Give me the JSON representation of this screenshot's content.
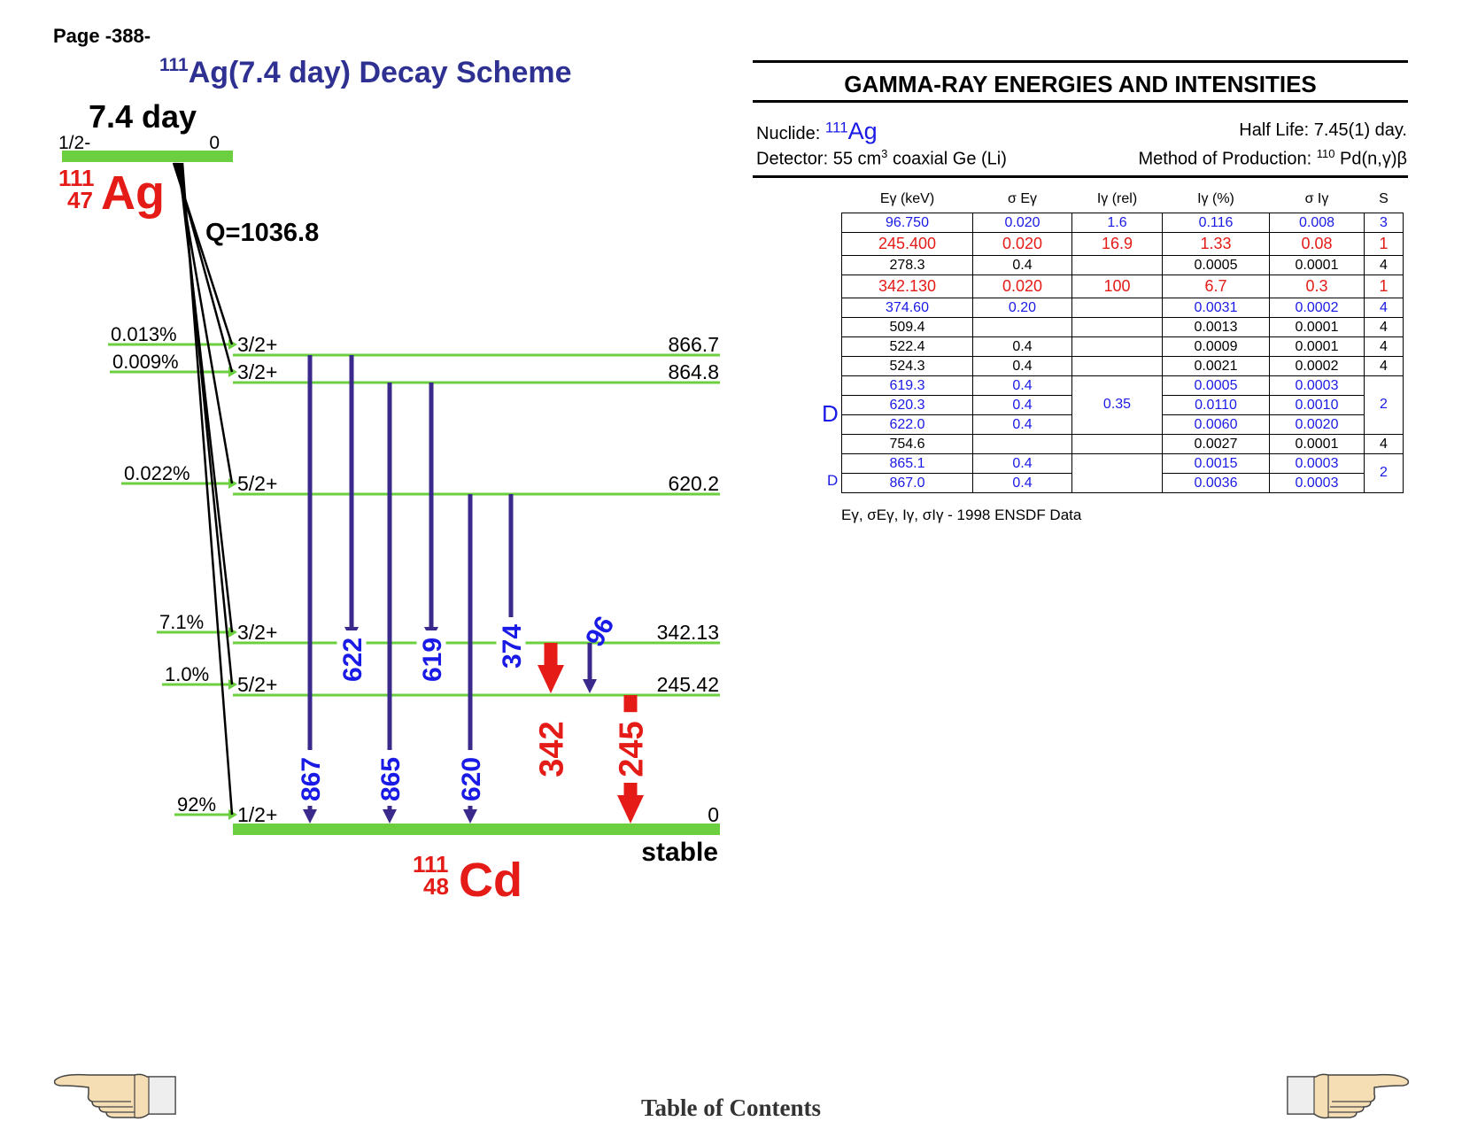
{
  "page_label": "Page -388-",
  "scheme": {
    "title_mass": "111",
    "title_text": "Ag(7.4 day) Decay Scheme",
    "parent": {
      "halflife": "7.4 day",
      "spin": "1/2-",
      "energy": "0",
      "mass": "111",
      "z": "47",
      "symbol": "Ag"
    },
    "q_value": "Q=1036.8",
    "levels": [
      {
        "spin": "3/2+",
        "energy": "866.7",
        "feed": "0.013%"
      },
      {
        "spin": "3/2+",
        "energy": "864.8",
        "feed": "0.009%"
      },
      {
        "spin": "5/2+",
        "energy": "620.2",
        "feed": "0.022%"
      },
      {
        "spin": "3/2+",
        "energy": "342.13",
        "feed": "7.1%"
      },
      {
        "spin": "5/2+",
        "energy": "245.42",
        "feed": "1.0%"
      },
      {
        "spin": "1/2+",
        "energy": "0",
        "feed": "92%"
      }
    ],
    "gammas": [
      {
        "label": "867",
        "color": "blue"
      },
      {
        "label": "622",
        "color": "blue"
      },
      {
        "label": "865",
        "color": "blue"
      },
      {
        "label": "619",
        "color": "blue"
      },
      {
        "label": "620",
        "color": "blue"
      },
      {
        "label": "374",
        "color": "blue"
      },
      {
        "label": "342",
        "color": "red"
      },
      {
        "label": "96",
        "color": "blue"
      },
      {
        "label": "245",
        "color": "red"
      }
    ],
    "daughter": {
      "mass": "111",
      "z": "48",
      "symbol": "Cd",
      "stable": "stable"
    }
  },
  "table_header": {
    "title": "GAMMA-RAY ENERGIES AND INTENSITIES",
    "nuclide_label": "Nuclide:",
    "nuclide_mass": "111",
    "nuclide_symbol": "Ag",
    "half_life": "Half Life: 7.45(1) day.",
    "detector_pre": "Detector: 55 cm",
    "detector_sup": "3",
    "detector_post": " coaxial Ge (Li)",
    "method_pre": "Method of Production: ",
    "method_sup": "110",
    "method_post": " Pd(n,γ)β"
  },
  "columns": [
    "Eγ (keV)",
    "σ Eγ",
    "Iγ (rel)",
    "Iγ (%)",
    "σ Iγ",
    "S"
  ],
  "rows": [
    {
      "e": "96.750",
      "se": "0.020",
      "irel": "1.6",
      "ipct": "0.116",
      "si": "0.008",
      "s": "3",
      "color": "blue"
    },
    {
      "e": "245.400",
      "se": "0.020",
      "irel": "16.9",
      "ipct": "1.33",
      "si": "0.08",
      "s": "1",
      "color": "red"
    },
    {
      "e": "278.3",
      "se": "0.4",
      "irel": "",
      "ipct": "0.0005",
      "si": "0.0001",
      "s": "4",
      "color": "black"
    },
    {
      "e": "342.130",
      "se": "0.020",
      "irel": "100",
      "ipct": "6.7",
      "si": "0.3",
      "s": "1",
      "color": "red"
    },
    {
      "e": "374.60",
      "se": "0.20",
      "irel": "",
      "ipct": "0.0031",
      "si": "0.0002",
      "s": "4",
      "color": "blue"
    },
    {
      "e": "509.4",
      "se": "",
      "irel": "",
      "ipct": "0.0013",
      "si": "0.0001",
      "s": "4",
      "color": "black"
    },
    {
      "e": "522.4",
      "se": "0.4",
      "irel": "",
      "ipct": "0.0009",
      "si": "0.0001",
      "s": "4",
      "color": "black"
    },
    {
      "e": "524.3",
      "se": "0.4",
      "irel": "",
      "ipct": "0.0021",
      "si": "0.0002",
      "s": "4",
      "color": "black"
    },
    {
      "e": "619.3",
      "se": "0.4",
      "irel": "0.35",
      "ipct": "0.0005",
      "si": "0.0003",
      "s": "2",
      "color": "blue"
    },
    {
      "e": "620.3",
      "se": "0.4",
      "irel": "",
      "ipct": "0.0110",
      "si": "0.0010",
      "s": "",
      "color": "blue"
    },
    {
      "e": "622.0",
      "se": "0.4",
      "irel": "",
      "ipct": "0.0060",
      "si": "0.0020",
      "s": "",
      "color": "blue"
    },
    {
      "e": "754.6",
      "se": "",
      "irel": "",
      "ipct": "0.0027",
      "si": "0.0001",
      "s": "4",
      "color": "black"
    },
    {
      "e": "865.1",
      "se": "0.4",
      "irel": "",
      "ipct": "0.0015",
      "si": "0.0003",
      "s": "2",
      "color": "blue"
    },
    {
      "e": "867.0",
      "se": "0.4",
      "irel": "",
      "ipct": "0.0036",
      "si": "0.0003",
      "s": "",
      "color": "blue"
    }
  ],
  "d_markers": [
    "D",
    "D"
  ],
  "note": "Eγ, σEγ, Iγ, σIγ - 1998 ENSDF Data",
  "toc": "Table of Contents",
  "colors": {
    "level_green": "#6ccf3f",
    "gamma_purple": "#3b2a8c",
    "label_blue": "#1a1ae6",
    "strong_red": "#e41b17",
    "title_navy": "#2e3192"
  }
}
